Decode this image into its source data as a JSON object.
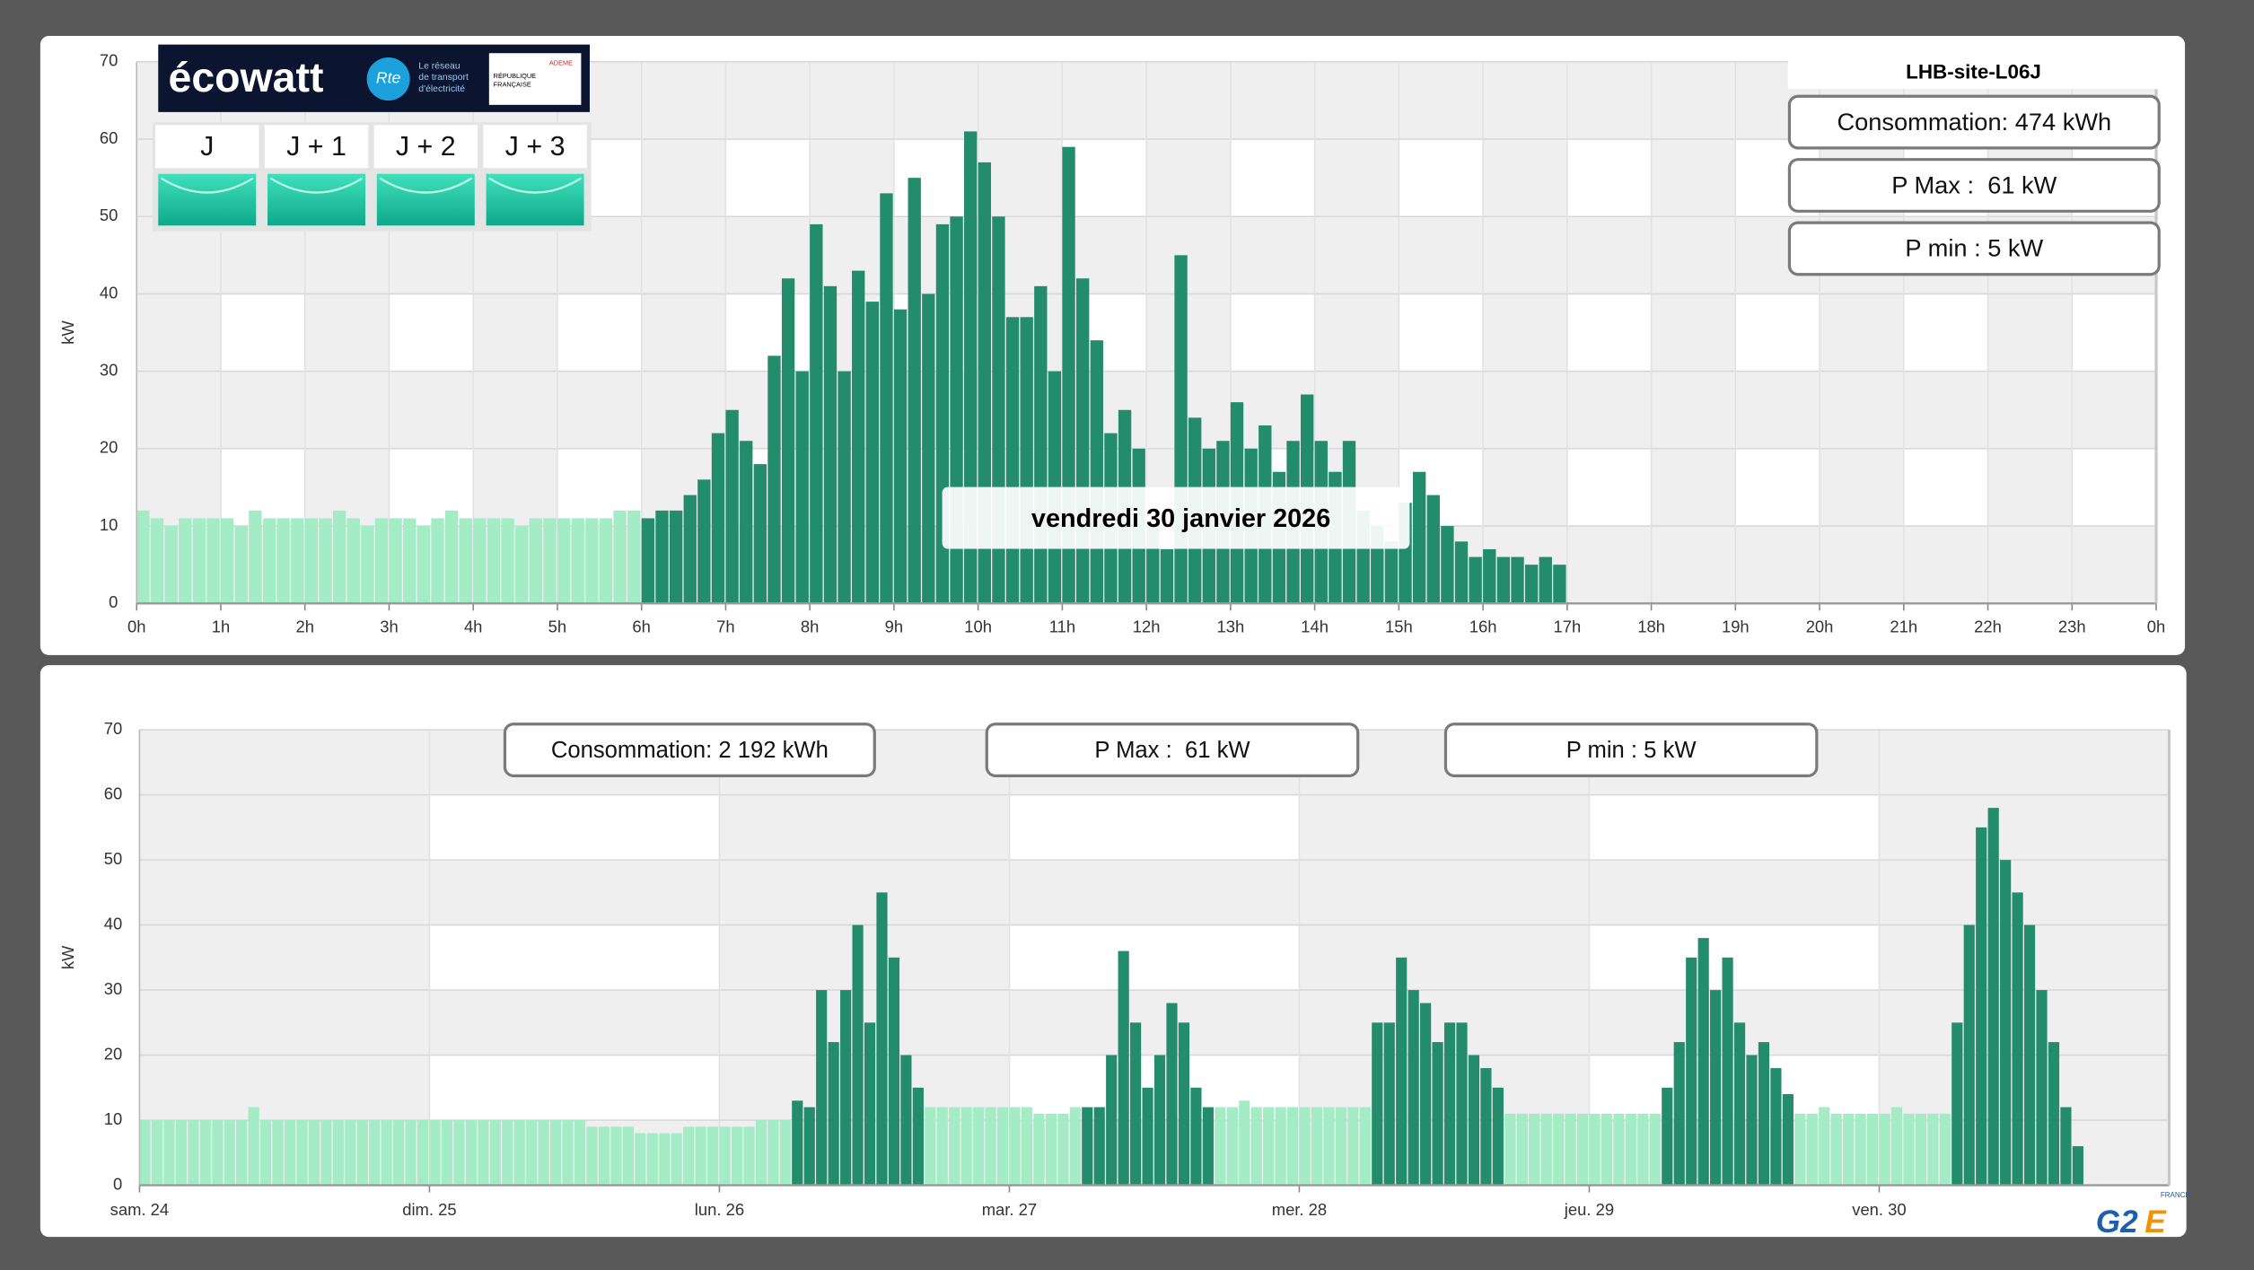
{
  "ecowatt": {
    "brand": "écowatt",
    "partner": "Rte",
    "tagline": [
      "Le réseau",
      "de transport",
      "d'électricité"
    ],
    "state_logo": [
      "RÉPUBLIQUE",
      "FRANÇAISE"
    ],
    "agency": "ADEME",
    "days": [
      "J",
      "J + 1",
      "J + 2",
      "J + 3"
    ]
  },
  "site": "LHB-site-L06J",
  "tooltip": "vendredi 30 janvier 2026",
  "day_stats": [
    "Consommation: 474 kWh",
    "P Max :  61 kW",
    "P min : 5 kW"
  ],
  "week_stats": [
    "Consommation: 2 192 kWh",
    "P Max :  61 kW",
    "P min : 5 kW"
  ],
  "footer_logo": {
    "mark": "G2",
    "accent": "E",
    "country": "FRANCE"
  },
  "chart_data": [
    {
      "type": "bar",
      "ylabel": "kW",
      "ylim": [
        0,
        70
      ],
      "yticks": [
        0,
        10,
        20,
        30,
        40,
        50,
        60,
        70
      ],
      "xlim": [
        0,
        1440
      ],
      "grid": true,
      "xticks": [
        {
          "value": 0,
          "label": "0h"
        },
        {
          "value": 60,
          "label": "1h"
        },
        {
          "value": 120,
          "label": "2h"
        },
        {
          "value": 180,
          "label": "3h"
        },
        {
          "value": 240,
          "label": "4h"
        },
        {
          "value": 300,
          "label": "5h"
        },
        {
          "value": 360,
          "label": "6h"
        },
        {
          "value": 420,
          "label": "7h"
        },
        {
          "value": 480,
          "label": "8h"
        },
        {
          "value": 540,
          "label": "9h"
        },
        {
          "value": 600,
          "label": "10h"
        },
        {
          "value": 660,
          "label": "11h"
        },
        {
          "value": 720,
          "label": "12h"
        },
        {
          "value": 780,
          "label": "13h"
        },
        {
          "value": 840,
          "label": "14h"
        },
        {
          "value": 900,
          "label": "15h"
        },
        {
          "value": 960,
          "label": "16h"
        },
        {
          "value": 1020,
          "label": "17h"
        },
        {
          "value": 1080,
          "label": "18h"
        },
        {
          "value": 1140,
          "label": "19h"
        },
        {
          "value": 1200,
          "label": "20h"
        },
        {
          "value": 1260,
          "label": "21h"
        },
        {
          "value": 1320,
          "label": "22h"
        },
        {
          "value": 1380,
          "label": "23h"
        },
        {
          "value": 1440,
          "label": "0h"
        }
      ],
      "x": [
        0,
        10,
        20,
        30,
        40,
        50,
        60,
        70,
        80,
        90,
        100,
        110,
        120,
        130,
        140,
        150,
        160,
        170,
        180,
        190,
        200,
        210,
        220,
        230,
        240,
        250,
        260,
        270,
        280,
        290,
        300,
        310,
        320,
        330,
        340,
        350,
        360,
        370,
        380,
        390,
        400,
        410,
        420,
        430,
        440,
        450,
        460,
        470,
        480,
        490,
        500,
        510,
        520,
        530,
        540,
        550,
        560,
        570,
        580,
        590,
        600,
        610,
        620,
        630,
        640,
        650,
        660,
        670,
        680,
        690,
        700,
        710,
        720,
        730,
        740,
        750,
        760,
        770,
        780,
        790,
        800,
        810,
        820,
        830,
        840,
        850,
        860,
        870,
        880,
        890,
        900,
        910,
        920,
        930,
        940,
        950,
        960,
        970,
        980,
        990,
        1000,
        1010
      ],
      "series": [
        {
          "color": "#a3ecc5",
          "values": [
            12,
            11,
            10,
            11,
            11,
            11,
            11,
            10,
            12,
            11,
            11,
            11,
            11,
            11,
            12,
            11,
            10,
            11,
            11,
            11,
            10,
            11,
            12,
            11,
            11,
            11,
            11,
            10,
            11,
            11,
            11,
            11,
            11,
            11,
            12,
            12,
            null,
            null,
            null,
            null,
            null,
            null,
            null,
            null,
            null,
            null,
            null,
            null,
            null,
            null,
            null,
            null,
            null,
            null,
            null,
            null,
            null,
            null,
            null,
            null,
            null,
            null,
            null,
            null,
            null,
            null,
            null,
            null,
            null,
            null,
            null,
            null,
            null,
            null,
            null,
            null,
            null,
            null,
            null,
            null,
            null,
            null,
            null,
            null,
            null,
            null,
            null,
            null,
            null,
            null,
            null,
            null,
            null,
            null,
            null,
            null,
            null,
            null,
            null,
            null,
            null,
            null
          ]
        },
        {
          "color": "#238c6a",
          "values": [
            null,
            null,
            null,
            null,
            null,
            null,
            null,
            null,
            null,
            null,
            null,
            null,
            null,
            null,
            null,
            null,
            null,
            null,
            null,
            null,
            null,
            null,
            null,
            null,
            null,
            null,
            null,
            null,
            null,
            null,
            null,
            null,
            null,
            null,
            null,
            null,
            11,
            12,
            12,
            14,
            16,
            22,
            25,
            21,
            18,
            32,
            42,
            30,
            49,
            41,
            30,
            43,
            39,
            53,
            38,
            55,
            40,
            49,
            50,
            61,
            57,
            50,
            37,
            37,
            41,
            30,
            59,
            42,
            34,
            22,
            25,
            20,
            10,
            7,
            45,
            24,
            20,
            21,
            26,
            20,
            23,
            17,
            21,
            27,
            21,
            17,
            21,
            12,
            10,
            8,
            13,
            17,
            14,
            10,
            8,
            6,
            7,
            6,
            6,
            5,
            6,
            5
          ]
        }
      ]
    },
    {
      "type": "bar",
      "ylabel": "kW",
      "ylim": [
        0,
        70
      ],
      "yticks": [
        0,
        10,
        20,
        30,
        40,
        50,
        60,
        70
      ],
      "xlim": [
        0,
        168
      ],
      "grid": true,
      "xticks": [
        {
          "value": 0,
          "label": "sam. 24"
        },
        {
          "value": 24,
          "label": "dim. 25"
        },
        {
          "value": 48,
          "label": "lun. 26"
        },
        {
          "value": 72,
          "label": "mar. 27"
        },
        {
          "value": 96,
          "label": "mer. 28"
        },
        {
          "value": 120,
          "label": "jeu. 29"
        },
        {
          "value": 144,
          "label": "ven. 30"
        }
      ],
      "x": [
        0,
        1,
        2,
        3,
        4,
        5,
        6,
        7,
        8,
        9,
        10,
        11,
        12,
        13,
        14,
        15,
        16,
        17,
        18,
        19,
        20,
        21,
        22,
        23,
        24,
        25,
        26,
        27,
        28,
        29,
        30,
        31,
        32,
        33,
        34,
        35,
        36,
        37,
        38,
        39,
        40,
        41,
        42,
        43,
        44,
        45,
        46,
        47,
        48,
        49,
        50,
        51,
        52,
        53,
        54,
        55,
        56,
        57,
        58,
        59,
        60,
        61,
        62,
        63,
        64,
        65,
        66,
        67,
        68,
        69,
        70,
        71,
        72,
        73,
        74,
        75,
        76,
        77,
        78,
        79,
        80,
        81,
        82,
        83,
        84,
        85,
        86,
        87,
        88,
        89,
        90,
        91,
        92,
        93,
        94,
        95,
        96,
        97,
        98,
        99,
        100,
        101,
        102,
        103,
        104,
        105,
        106,
        107,
        108,
        109,
        110,
        111,
        112,
        113,
        114,
        115,
        116,
        117,
        118,
        119,
        120,
        121,
        122,
        123,
        124,
        125,
        126,
        127,
        128,
        129,
        130,
        131,
        132,
        133,
        134,
        135,
        136,
        137,
        138,
        139,
        140,
        141,
        142,
        143,
        144,
        145,
        146,
        147,
        148,
        149,
        150,
        151,
        152,
        153,
        154,
        155,
        156,
        157,
        158,
        159,
        160
      ],
      "series": [
        {
          "color": "#a3ecc5",
          "values": [
            10,
            10,
            10,
            10,
            10,
            10,
            10,
            10,
            10,
            12,
            10,
            10,
            10,
            10,
            10,
            10,
            10,
            10,
            10,
            10,
            10,
            10,
            10,
            10,
            10,
            10,
            10,
            10,
            10,
            10,
            10,
            10,
            10,
            10,
            10,
            10,
            10,
            9,
            9,
            9,
            9,
            8,
            8,
            8,
            8,
            9,
            9,
            9,
            9,
            9,
            9,
            10,
            10,
            10,
            null,
            null,
            null,
            null,
            null,
            null,
            null,
            null,
            null,
            null,
            null,
            12,
            12,
            12,
            12,
            12,
            12,
            12,
            12,
            12,
            11,
            11,
            11,
            12,
            null,
            null,
            null,
            null,
            null,
            null,
            null,
            null,
            null,
            null,
            null,
            12,
            12,
            13,
            12,
            12,
            12,
            12,
            12,
            12,
            12,
            12,
            12,
            12,
            null,
            null,
            null,
            null,
            null,
            null,
            null,
            null,
            null,
            null,
            null,
            11,
            11,
            11,
            11,
            11,
            11,
            11,
            11,
            11,
            11,
            11,
            11,
            11,
            null,
            null,
            null,
            null,
            null,
            null,
            null,
            null,
            null,
            null,
            null,
            11,
            11,
            12,
            11,
            11,
            11,
            11,
            11,
            12,
            11,
            11,
            11,
            11,
            null,
            null,
            null,
            null,
            null,
            null,
            null,
            null,
            null,
            null,
            null
          ]
        },
        {
          "color": "#238c6a",
          "values": [
            null,
            null,
            null,
            null,
            null,
            null,
            null,
            null,
            null,
            null,
            null,
            null,
            null,
            null,
            null,
            null,
            null,
            null,
            null,
            null,
            null,
            null,
            null,
            null,
            null,
            null,
            null,
            null,
            null,
            null,
            null,
            null,
            null,
            null,
            null,
            null,
            null,
            null,
            null,
            null,
            null,
            null,
            null,
            null,
            null,
            null,
            null,
            null,
            null,
            null,
            null,
            null,
            null,
            null,
            13,
            12,
            30,
            22,
            30,
            40,
            25,
            45,
            35,
            20,
            15,
            null,
            null,
            null,
            null,
            null,
            null,
            null,
            null,
            null,
            null,
            null,
            null,
            null,
            12,
            12,
            20,
            36,
            25,
            15,
            20,
            28,
            25,
            15,
            12,
            null,
            null,
            null,
            null,
            null,
            null,
            null,
            null,
            null,
            null,
            null,
            null,
            null,
            25,
            25,
            35,
            30,
            28,
            22,
            25,
            25,
            20,
            18,
            15,
            null,
            null,
            null,
            null,
            null,
            null,
            null,
            null,
            null,
            null,
            null,
            null,
            null,
            15,
            22,
            35,
            38,
            30,
            35,
            25,
            20,
            22,
            18,
            14,
            null,
            null,
            null,
            null,
            null,
            null,
            null,
            null,
            null,
            null,
            null,
            null,
            null,
            25,
            40,
            55,
            58,
            50,
            45,
            40,
            30,
            22,
            12,
            6
          ]
        }
      ]
    }
  ]
}
